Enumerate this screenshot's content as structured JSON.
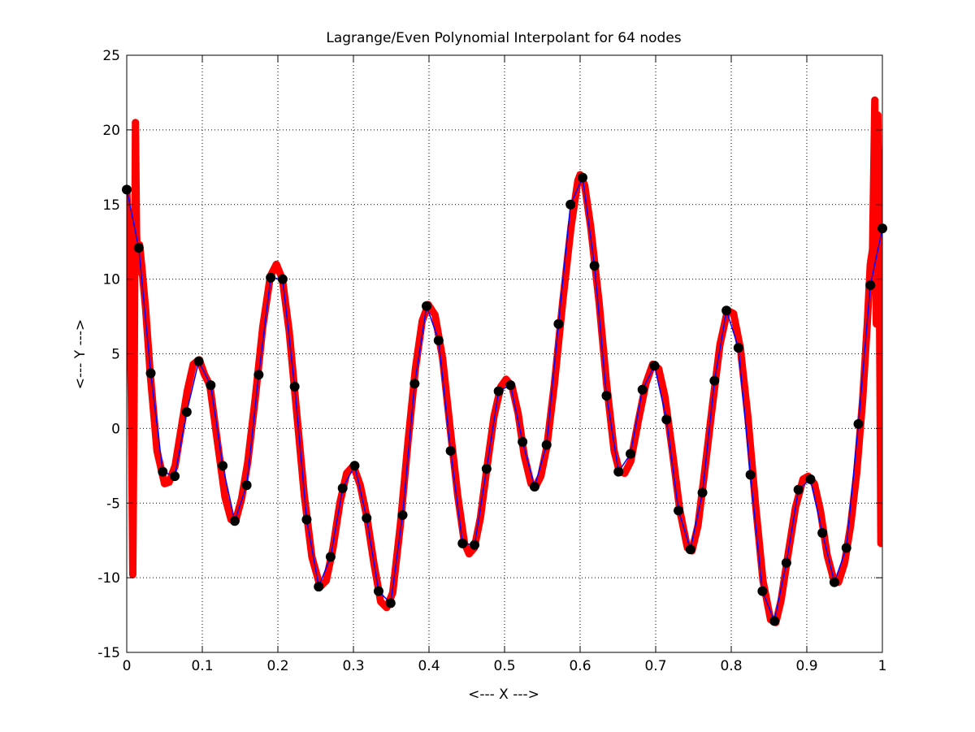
{
  "chart_data": {
    "type": "line",
    "title": "Lagrange/Even Polynomial Interpolant for 64 nodes",
    "xlabel": "<--- X --->",
    "ylabel": "<--- Y --->",
    "xlim": [
      0,
      1
    ],
    "ylim": [
      -15,
      25
    ],
    "grid": true,
    "grid_style": "dotted",
    "x_ticks": [
      0,
      0.1,
      0.2,
      0.3,
      0.4,
      0.5,
      0.6,
      0.7,
      0.8,
      0.9,
      1
    ],
    "x_tick_labels": [
      "0",
      "0.1",
      "0.2",
      "0.3",
      "0.4",
      "0.5",
      "0.6",
      "0.7",
      "0.8",
      "0.9",
      "1"
    ],
    "y_ticks": [
      -15,
      -10,
      -5,
      0,
      5,
      10,
      15,
      20,
      25
    ],
    "y_tick_labels": [
      "-15",
      "-10",
      "-5",
      "0",
      "5",
      "10",
      "15",
      "20",
      "25"
    ],
    "series": [
      {
        "role": "underlying function (piecewise linear through nodes)",
        "color": "#0000ff",
        "line_width": "thin",
        "x": [
          0,
          0.01587,
          0.03175,
          0.04762,
          0.06349,
          0.07937,
          0.09524,
          0.1111,
          0.127,
          0.1429,
          0.1587,
          0.1746,
          0.1905,
          0.2063,
          0.2222,
          0.2381,
          0.254,
          0.2698,
          0.2857,
          0.3016,
          0.3175,
          0.3333,
          0.3492,
          0.3651,
          0.381,
          0.3968,
          0.4127,
          0.4286,
          0.4444,
          0.4603,
          0.4762,
          0.4921,
          0.5079,
          0.5238,
          0.5397,
          0.5556,
          0.5714,
          0.5873,
          0.6032,
          0.619,
          0.6349,
          0.6508,
          0.6667,
          0.6825,
          0.6984,
          0.7143,
          0.7302,
          0.746,
          0.7619,
          0.7778,
          0.7937,
          0.8095,
          0.8254,
          0.8413,
          0.8571,
          0.873,
          0.8889,
          0.9048,
          0.9206,
          0.9365,
          0.9524,
          0.9683,
          0.9841,
          1.0
        ],
        "y": [
          16.0,
          12.1,
          3.7,
          -2.9,
          -3.2,
          1.1,
          4.5,
          2.9,
          -2.5,
          -6.2,
          -3.8,
          3.6,
          10.1,
          10.0,
          2.8,
          -6.1,
          -10.6,
          -8.6,
          -4.0,
          -2.5,
          -6.0,
          -10.9,
          -11.7,
          -5.8,
          3.0,
          8.2,
          5.9,
          -1.5,
          -7.7,
          -7.8,
          -2.7,
          2.5,
          2.9,
          -0.9,
          -3.9,
          -1.1,
          7.0,
          15.0,
          16.8,
          10.9,
          2.2,
          -2.9,
          -1.7,
          2.6,
          4.2,
          0.6,
          -5.5,
          -8.1,
          -4.3,
          3.2,
          7.9,
          5.4,
          -3.1,
          -10.9,
          -12.9,
          -9.0,
          -4.1,
          -3.4,
          -7.0,
          -10.3,
          -8.0,
          0.3,
          9.6,
          13.4
        ]
      },
      {
        "role": "Lagrange interpolant",
        "color": "#ff0000",
        "line_width": "thick",
        "x": [
          0.0,
          0.003,
          0.006,
          0.008,
          0.01,
          0.0115,
          0.013,
          0.015,
          0.017,
          0.02,
          0.025,
          0.031,
          0.04,
          0.05,
          0.056,
          0.064,
          0.072,
          0.08,
          0.088,
          0.096,
          0.103,
          0.11,
          0.12,
          0.13,
          0.138,
          0.144,
          0.152,
          0.16,
          0.17,
          0.18,
          0.19,
          0.198,
          0.206,
          0.215,
          0.225,
          0.235,
          0.245,
          0.256,
          0.264,
          0.273,
          0.282,
          0.291,
          0.3,
          0.309,
          0.318,
          0.327,
          0.336,
          0.344,
          0.352,
          0.362,
          0.372,
          0.382,
          0.391,
          0.399,
          0.408,
          0.418,
          0.428,
          0.438,
          0.447,
          0.453,
          0.46,
          0.468,
          0.477,
          0.486,
          0.495,
          0.502,
          0.51,
          0.518,
          0.526,
          0.535,
          0.541,
          0.548,
          0.556,
          0.566,
          0.577,
          0.588,
          0.597,
          0.6,
          0.606,
          0.614,
          0.625,
          0.635,
          0.645,
          0.652,
          0.659,
          0.667,
          0.677,
          0.687,
          0.696,
          0.704,
          0.712,
          0.722,
          0.732,
          0.742,
          0.748,
          0.756,
          0.765,
          0.775,
          0.785,
          0.795,
          0.803,
          0.812,
          0.822,
          0.832,
          0.842,
          0.852,
          0.859,
          0.866,
          0.875,
          0.885,
          0.895,
          0.902,
          0.91,
          0.918,
          0.927,
          0.936,
          0.942,
          0.95,
          0.958,
          0.966,
          0.974,
          0.98,
          0.984,
          0.987,
          0.99,
          0.992,
          0.994,
          0.996,
          0.998,
          0.9995,
          1.0
        ],
        "y": [
          16.0,
          12.0,
          2.0,
          -9.8,
          4.0,
          20.5,
          13.0,
          10.5,
          12.3,
          10.8,
          8.0,
          3.7,
          -1.5,
          -3.7,
          -3.6,
          -2.5,
          0.0,
          2.5,
          4.3,
          4.6,
          3.6,
          2.9,
          -0.9,
          -4.6,
          -6.1,
          -6.2,
          -4.7,
          -2.3,
          2.0,
          6.8,
          10.2,
          11.0,
          10.0,
          6.5,
          1.0,
          -4.5,
          -8.6,
          -10.6,
          -10.2,
          -8.0,
          -5.0,
          -3.0,
          -2.5,
          -3.8,
          -6.0,
          -9.0,
          -11.6,
          -12.0,
          -11.0,
          -6.5,
          -1.0,
          4.0,
          7.2,
          8.3,
          7.6,
          4.7,
          0.0,
          -4.5,
          -7.7,
          -8.4,
          -8.0,
          -6.0,
          -2.5,
          0.8,
          2.8,
          3.3,
          2.8,
          1.0,
          -1.8,
          -3.7,
          -3.9,
          -3.2,
          -1.2,
          3.0,
          8.5,
          13.5,
          16.6,
          17.0,
          16.3,
          13.5,
          8.5,
          3.0,
          -1.5,
          -2.9,
          -3.0,
          -2.2,
          0.5,
          3.0,
          4.3,
          4.0,
          2.2,
          -1.5,
          -5.5,
          -8.0,
          -8.2,
          -6.5,
          -2.8,
          1.5,
          5.6,
          7.9,
          7.7,
          5.4,
          0.8,
          -5.0,
          -10.2,
          -12.8,
          -13.0,
          -11.5,
          -8.5,
          -5.3,
          -3.4,
          -3.2,
          -3.7,
          -5.5,
          -8.5,
          -10.2,
          -10.3,
          -9.0,
          -6.5,
          -3.0,
          2.0,
          7.0,
          11.0,
          12.0,
          22.0,
          7.0,
          21.0,
          10.0,
          -7.7,
          18.5,
          13.4
        ]
      },
      {
        "role": "interpolation nodes",
        "type": "scatter",
        "color": "#000000",
        "marker": "filled-circle",
        "count": 64
      }
    ]
  }
}
